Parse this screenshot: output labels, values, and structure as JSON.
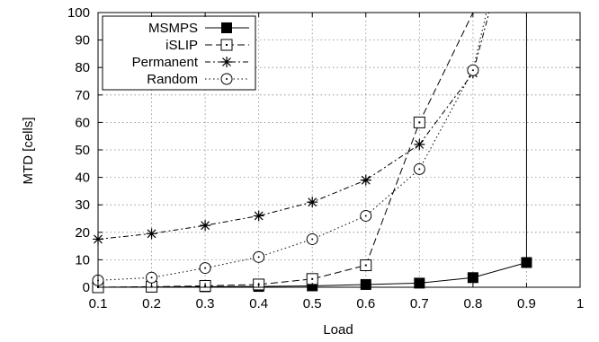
{
  "chart_data": {
    "type": "line",
    "xlabel": "Load",
    "ylabel": "MTD [cells]",
    "xlim": [
      0.1,
      1
    ],
    "ylim": [
      0,
      100
    ],
    "xticks": [
      "0.1",
      "0.2",
      "0.3",
      "0.4",
      "0.5",
      "0.6",
      "0.7",
      "0.8",
      "0.9",
      "1"
    ],
    "yticks": [
      "0",
      "10",
      "20",
      "30",
      "40",
      "50",
      "60",
      "70",
      "80",
      "90",
      "100"
    ],
    "grid": true,
    "legend_position": "top-left",
    "series": [
      {
        "name": "MSMPS",
        "line": "solid",
        "marker": "filled-square",
        "x": [
          0.1,
          0.2,
          0.3,
          0.4,
          0.5,
          0.6,
          0.7,
          0.8,
          0.9,
          0.9
        ],
        "y": [
          0,
          0.1,
          0.2,
          0.3,
          0.5,
          1,
          1.5,
          3.5,
          9,
          100
        ]
      },
      {
        "name": "iSLIP",
        "line": "dashed",
        "marker": "open-square",
        "x": [
          0.1,
          0.2,
          0.3,
          0.4,
          0.5,
          0.6,
          0.7,
          0.8,
          0.8
        ],
        "y": [
          0,
          0.2,
          0.5,
          1,
          3,
          8,
          60,
          100,
          100
        ]
      },
      {
        "name": "Permanent",
        "line": "dash-dot",
        "marker": "asterisk",
        "x": [
          0.1,
          0.2,
          0.3,
          0.4,
          0.5,
          0.6,
          0.7,
          0.8,
          0.83
        ],
        "y": [
          17.5,
          19.5,
          22.5,
          26,
          31,
          39,
          52,
          78,
          100
        ]
      },
      {
        "name": "Random",
        "line": "dotted",
        "marker": "open-circle",
        "x": [
          0.1,
          0.2,
          0.3,
          0.4,
          0.5,
          0.6,
          0.7,
          0.8,
          0.825
        ],
        "y": [
          2.5,
          3.5,
          7,
          11,
          17.5,
          26,
          43,
          79,
          100
        ]
      }
    ]
  }
}
